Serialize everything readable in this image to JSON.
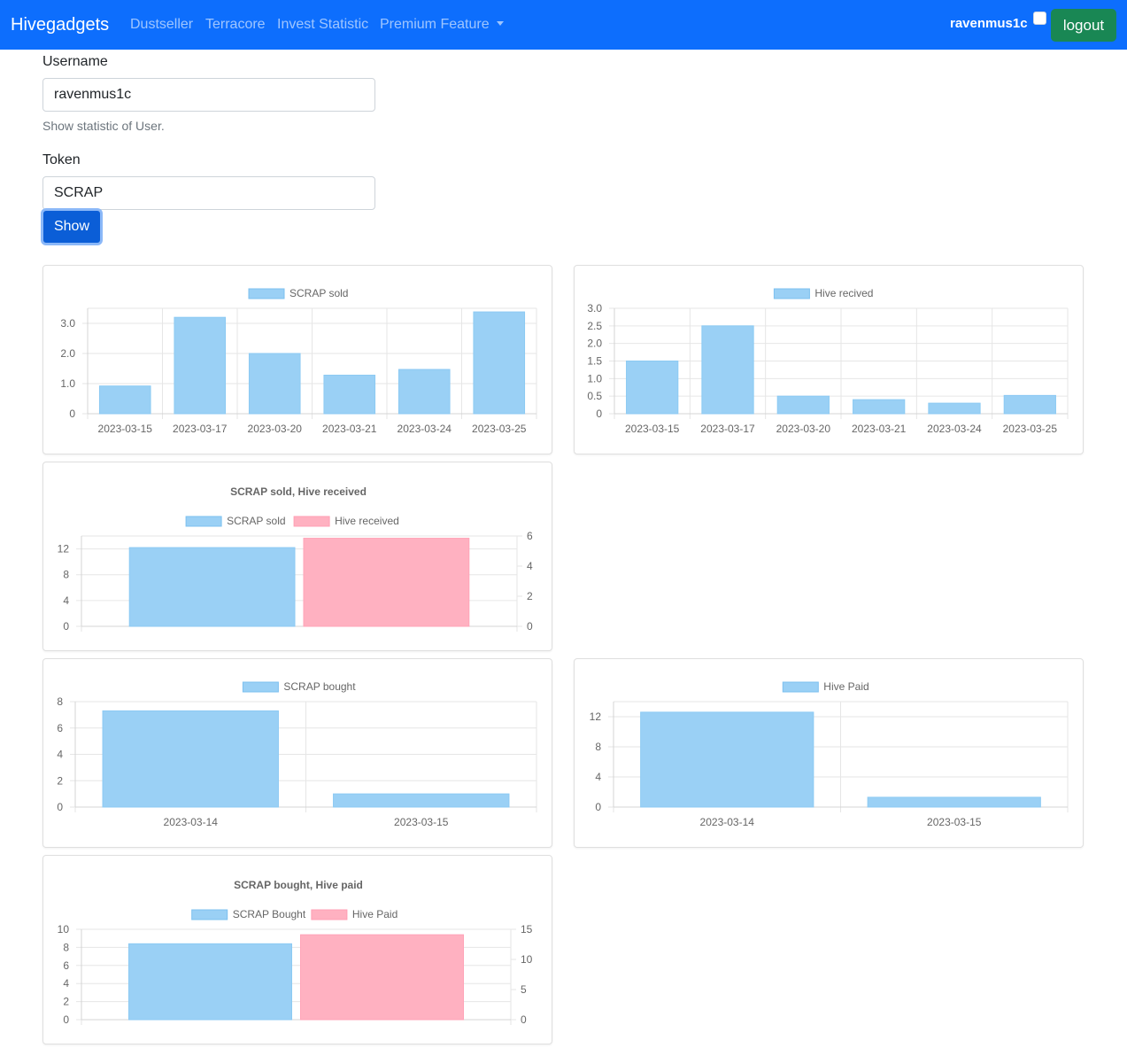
{
  "nav": {
    "brand": "Hivegadgets",
    "links": [
      "Dustseller",
      "Terracore",
      "Invest Statistic",
      "Premium Feature"
    ],
    "username": "ravenmus1c",
    "logout_label": "logout"
  },
  "form": {
    "username_label": "Username",
    "username_value": "ravenmus1c",
    "username_help": "Show statistic of User.",
    "token_label": "Token",
    "token_value": "SCRAP",
    "show_label": "Show"
  },
  "colors": {
    "primary": "#0d6efd",
    "success": "#198754",
    "bar_blue": "#9ad0f5",
    "bar_pink": "#ffb1c1"
  },
  "chart_data": [
    {
      "id": "scrap-sold",
      "type": "bar",
      "title": "",
      "categories": [
        "2023-03-15",
        "2023-03-17",
        "2023-03-20",
        "2023-03-21",
        "2023-03-24",
        "2023-03-25"
      ],
      "series": [
        {
          "name": "SCRAP sold",
          "values": [
            0.92,
            3.2,
            2.0,
            1.28,
            1.47,
            3.38
          ],
          "color": "#9ad0f5"
        }
      ],
      "ylim": [
        0,
        3.5
      ],
      "yticks": [
        0,
        1,
        2,
        3
      ],
      "ytick_labels": [
        "0",
        "1.0",
        "2.0",
        "3.0"
      ],
      "grid": true,
      "legend": "top"
    },
    {
      "id": "hive-received",
      "type": "bar",
      "title": "",
      "categories": [
        "2023-03-15",
        "2023-03-17",
        "2023-03-20",
        "2023-03-21",
        "2023-03-24",
        "2023-03-25"
      ],
      "series": [
        {
          "name": "Hive recived",
          "values": [
            1.5,
            2.5,
            0.5,
            0.4,
            0.3,
            0.52
          ],
          "color": "#9ad0f5"
        }
      ],
      "ylim": [
        0,
        3.0
      ],
      "yticks": [
        0,
        0.5,
        1,
        1.5,
        2,
        2.5,
        3
      ],
      "ytick_labels": [
        "0",
        "0.5",
        "1.0",
        "1.5",
        "2.0",
        "2.5",
        "3.0"
      ],
      "grid": true,
      "legend": "top"
    },
    {
      "id": "scrap-sold-hive-received",
      "type": "bar",
      "title": "SCRAP sold, Hive received",
      "categories": [
        ""
      ],
      "series": [
        {
          "name": "SCRAP sold",
          "values": [
            12.2
          ],
          "color": "#9ad0f5",
          "axis": "left"
        },
        {
          "name": "Hive received",
          "values": [
            5.85
          ],
          "color": "#ffb1c1",
          "axis": "right"
        }
      ],
      "ylim": [
        0,
        14
      ],
      "yticks": [
        0,
        4,
        8,
        12
      ],
      "y2lim": [
        0,
        6
      ],
      "y2ticks": [
        0,
        2,
        4,
        6
      ],
      "grid": true,
      "legend": "top"
    },
    {
      "id": "scrap-bought",
      "type": "bar",
      "title": "",
      "categories": [
        "2023-03-14",
        "2023-03-15"
      ],
      "series": [
        {
          "name": "SCRAP bought",
          "values": [
            7.3,
            1.0
          ],
          "color": "#9ad0f5"
        }
      ],
      "ylim": [
        0,
        8
      ],
      "yticks": [
        0,
        2,
        4,
        6,
        8
      ],
      "grid": true,
      "legend": "top"
    },
    {
      "id": "hive-paid",
      "type": "bar",
      "title": "",
      "categories": [
        "2023-03-14",
        "2023-03-15"
      ],
      "series": [
        {
          "name": "Hive Paid",
          "values": [
            12.6,
            1.3
          ],
          "color": "#9ad0f5"
        }
      ],
      "ylim": [
        0,
        14
      ],
      "yticks": [
        0,
        4,
        8,
        12
      ],
      "grid": true,
      "legend": "top"
    },
    {
      "id": "scrap-bought-hive-paid",
      "type": "bar",
      "title": "SCRAP bought, Hive paid",
      "categories": [
        ""
      ],
      "series": [
        {
          "name": "SCRAP Bought",
          "values": [
            8.4
          ],
          "color": "#9ad0f5",
          "axis": "left"
        },
        {
          "name": "Hive Paid",
          "values": [
            14.1
          ],
          "color": "#ffb1c1",
          "axis": "right"
        }
      ],
      "ylim": [
        0,
        10
      ],
      "yticks": [
        0,
        2,
        4,
        6,
        8,
        10
      ],
      "y2lim": [
        0,
        15
      ],
      "y2ticks": [
        0,
        5,
        10,
        15
      ],
      "grid": true,
      "legend": "top"
    }
  ]
}
